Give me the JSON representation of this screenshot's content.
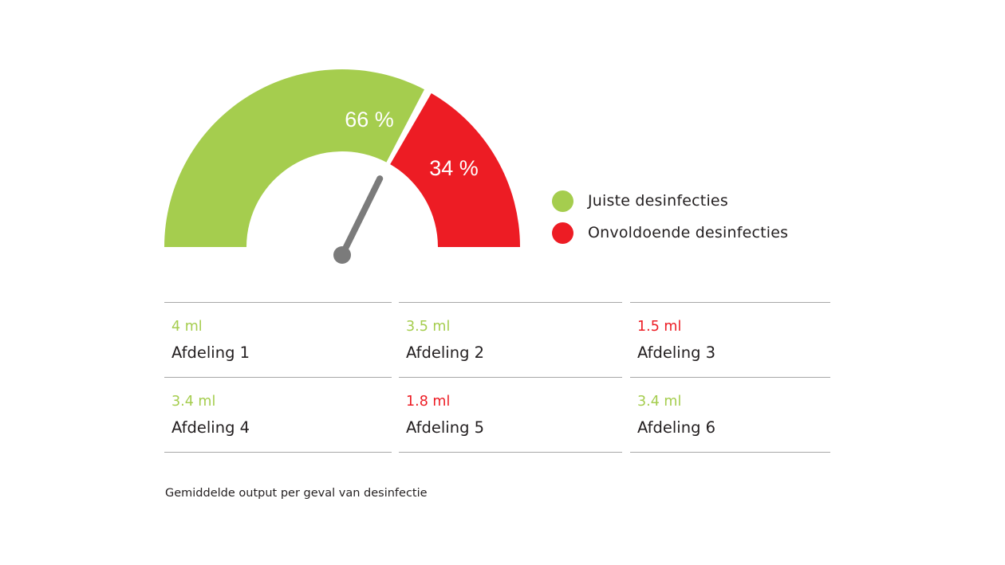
{
  "colors": {
    "good": "#a5cd4e",
    "bad": "#ed1c24",
    "needle": "#7b7b7b",
    "rule": "#a7a7a7",
    "text": "#231f20"
  },
  "chart_data": {
    "type": "gauge",
    "slices": [
      {
        "label": "66 %",
        "value": 66,
        "color": "#a5cd4e"
      },
      {
        "label": "34 %",
        "value": 34,
        "color": "#ed1c24"
      }
    ],
    "needle_value": 66,
    "legend": [
      {
        "label": "Juiste desinfecties",
        "color": "#a5cd4e"
      },
      {
        "label": "Onvoldoende desinfecties",
        "color": "#ed1c24"
      }
    ],
    "legend_position": "right"
  },
  "departments": [
    {
      "value": "4 ml",
      "name": "Afdeling 1",
      "status": "good"
    },
    {
      "value": "3.5 ml",
      "name": "Afdeling 2",
      "status": "good"
    },
    {
      "value": "1.5 ml",
      "name": "Afdeling 3",
      "status": "bad"
    },
    {
      "value": "3.4 ml",
      "name": "Afdeling 4",
      "status": "good"
    },
    {
      "value": "1.8 ml",
      "name": "Afdeling 5",
      "status": "bad"
    },
    {
      "value": "3.4 ml",
      "name": "Afdeling 6",
      "status": "good"
    }
  ],
  "caption": "Gemiddelde output per geval van desinfectie"
}
